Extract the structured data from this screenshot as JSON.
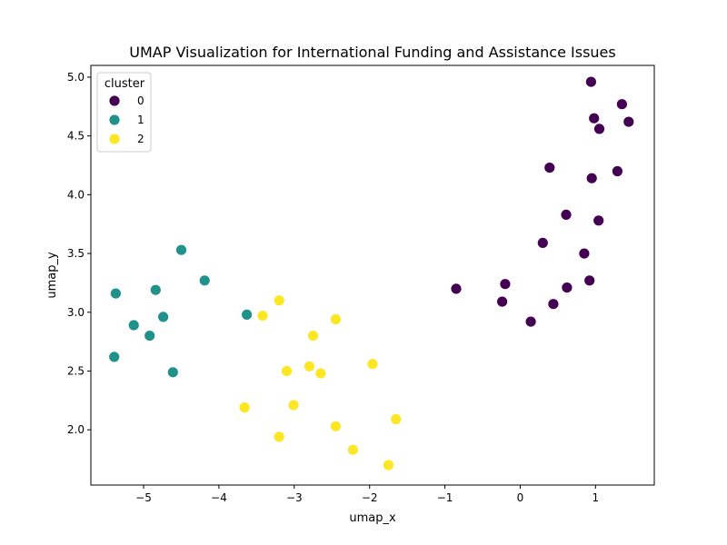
{
  "chart_data": {
    "type": "scatter",
    "title": "UMAP Visualization for International Funding and Assistance Issues",
    "xlabel": "umap_x",
    "ylabel": "umap_y",
    "xlim": [
      -5.7,
      1.78
    ],
    "ylim": [
      1.53,
      5.1
    ],
    "xticks": [
      -5,
      -4,
      -3,
      -2,
      -1,
      0,
      1
    ],
    "yticks": [
      2.0,
      2.5,
      3.0,
      3.5,
      4.0,
      4.5,
      5.0
    ],
    "xtick_labels": [
      "−5",
      "−4",
      "−3",
      "−2",
      "−1",
      "0",
      "1"
    ],
    "ytick_labels": [
      "2.0",
      "2.5",
      "3.0",
      "3.5",
      "4.0",
      "4.5",
      "5.0"
    ],
    "grid": false,
    "legend": {
      "title": "cluster",
      "placement": "top-left"
    },
    "series": [
      {
        "name": "0",
        "color": "#440154",
        "points": [
          [
            0.94,
            4.96
          ],
          [
            1.35,
            4.77
          ],
          [
            0.98,
            4.65
          ],
          [
            1.44,
            4.62
          ],
          [
            1.05,
            4.56
          ],
          [
            0.39,
            4.23
          ],
          [
            1.29,
            4.2
          ],
          [
            0.95,
            4.14
          ],
          [
            0.61,
            3.83
          ],
          [
            1.04,
            3.78
          ],
          [
            0.3,
            3.59
          ],
          [
            0.85,
            3.5
          ],
          [
            0.92,
            3.27
          ],
          [
            -0.2,
            3.24
          ],
          [
            0.62,
            3.21
          ],
          [
            -0.85,
            3.2
          ],
          [
            -0.24,
            3.09
          ],
          [
            0.44,
            3.07
          ],
          [
            0.14,
            2.92
          ]
        ]
      },
      {
        "name": "1",
        "color": "#21918c",
        "points": [
          [
            -4.5,
            3.53
          ],
          [
            -4.19,
            3.27
          ],
          [
            -4.84,
            3.19
          ],
          [
            -5.37,
            3.16
          ],
          [
            -3.63,
            2.98
          ],
          [
            -4.74,
            2.96
          ],
          [
            -5.13,
            2.89
          ],
          [
            -4.92,
            2.8
          ],
          [
            -5.39,
            2.62
          ],
          [
            -4.61,
            2.49
          ]
        ]
      },
      {
        "name": "2",
        "color": "#fde725",
        "points": [
          [
            -3.2,
            3.1
          ],
          [
            -3.42,
            2.97
          ],
          [
            -2.45,
            2.94
          ],
          [
            -2.75,
            2.8
          ],
          [
            -1.96,
            2.56
          ],
          [
            -2.8,
            2.54
          ],
          [
            -3.1,
            2.5
          ],
          [
            -2.65,
            2.48
          ],
          [
            -3.01,
            2.21
          ],
          [
            -3.66,
            2.19
          ],
          [
            -1.65,
            2.09
          ],
          [
            -2.45,
            2.03
          ],
          [
            -3.2,
            1.94
          ],
          [
            -2.22,
            1.83
          ],
          [
            -1.75,
            1.7
          ]
        ]
      }
    ]
  }
}
